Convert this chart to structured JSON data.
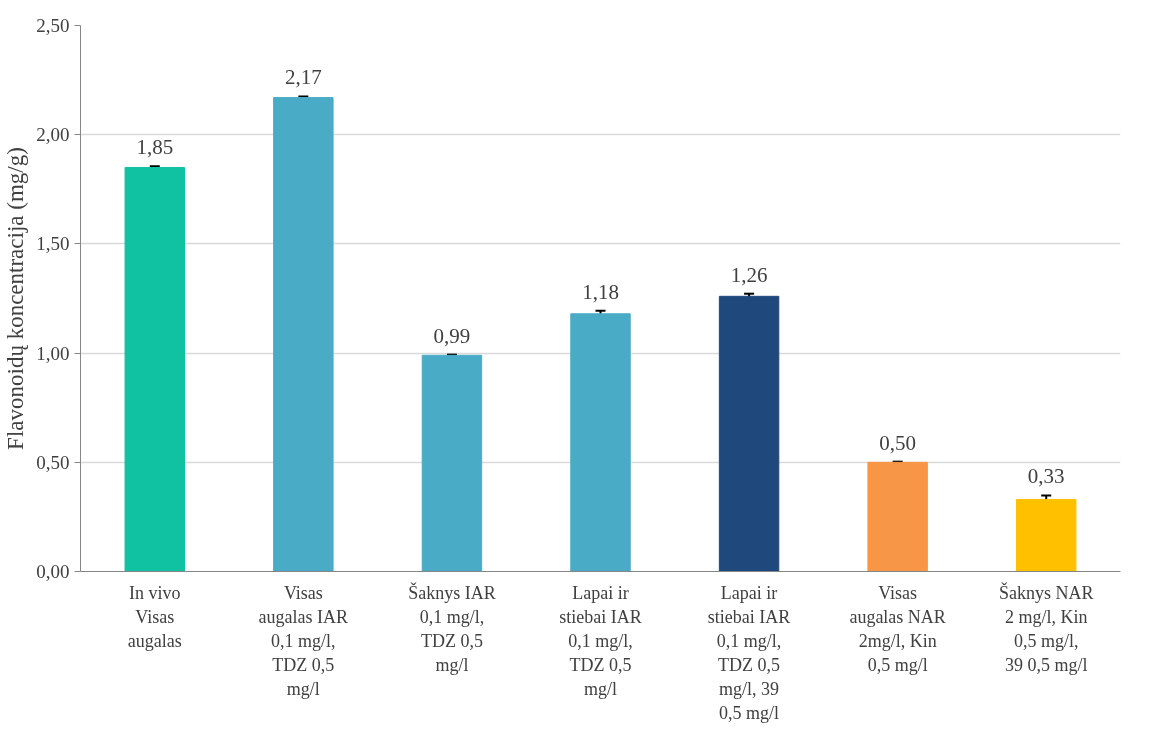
{
  "chart_data": {
    "type": "bar",
    "ylabel": "Flavonoidų koncentracija (mg/g)",
    "categories": [
      "In vivo Visas augalas",
      "Visas augalas IAR 0,1 mg/l, TDZ 0,5 mg/l",
      "Šaknys IAR 0,1 mg/l, TDZ 0,5 mg/l",
      "Lapai ir stiebai IAR 0,1 mg/l, TDZ 0,5 mg/l",
      "Lapai ir stiebai IAR 0,1 mg/l, TDZ 0,5 mg/l, 39 0,5 mg/l",
      "Visas augalas NAR 2mg/l, Kin 0,5 mg/l",
      "Šaknys NAR 2 mg/l, Kin 0,5 mg/l, 39 0,5 mg/l"
    ],
    "values": [
      1.85,
      2.17,
      0.99,
      1.18,
      1.26,
      0.5,
      0.33
    ],
    "colors": [
      "#10c1a2",
      "#4aabc6",
      "#4aabc6",
      "#4aabc6",
      "#1f497d",
      "#f79646",
      "#ffc000"
    ],
    "errors": [
      0.005,
      0.005,
      0.003,
      0.014,
      0.012,
      0.003,
      0.018
    ],
    "value_labels": [
      "1,85",
      "2,17",
      "0,99",
      "1,18",
      "1,26",
      "0,50",
      "0,33"
    ],
    "ylim": [
      0,
      2.5
    ],
    "yticks": [
      {
        "value": 0,
        "label": "0,00"
      },
      {
        "value": 0.5,
        "label": "0,50"
      },
      {
        "value": 1,
        "label": "1,00"
      },
      {
        "value": 1.5,
        "label": "1,50"
      },
      {
        "value": 2,
        "label": "2,00"
      },
      {
        "value": 2.5,
        "label": "2,50"
      }
    ],
    "grid": "y"
  }
}
